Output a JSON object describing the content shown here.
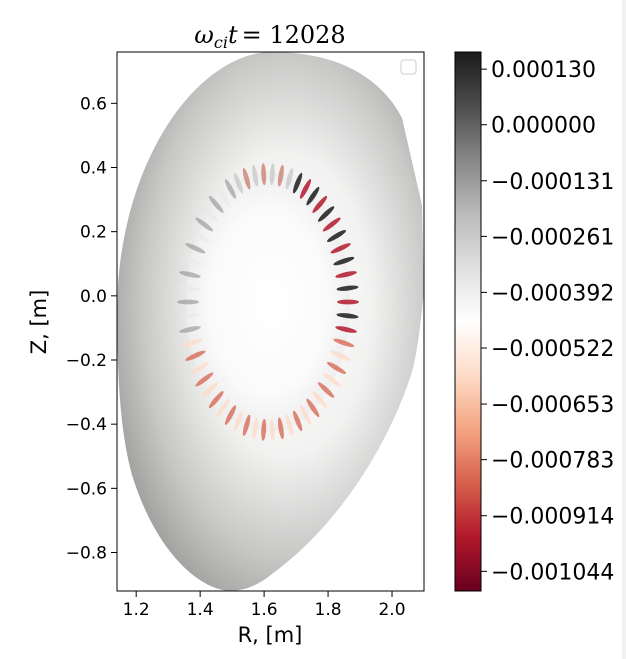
{
  "chart_data": {
    "type": "heatmap",
    "title": "ω_ci t = 12028",
    "title_parts": {
      "omega": "ω",
      "sub": "ci",
      "t": "t",
      "value": "= 12028"
    },
    "xlabel": "R, [m]",
    "ylabel": "Z, [m]",
    "xlim": [
      1.14,
      2.1
    ],
    "ylim": [
      -0.92,
      0.76
    ],
    "x_ticks": [
      1.2,
      1.4,
      1.6,
      1.8,
      2.0
    ],
    "x_tick_labels": [
      "1.2",
      "1.4",
      "1.6",
      "1.8",
      "2.0"
    ],
    "y_ticks": [
      0.6,
      0.4,
      0.2,
      0.0,
      -0.2,
      -0.4,
      -0.6,
      -0.8
    ],
    "y_tick_labels": [
      "0.6",
      "0.4",
      "0.2",
      "0.0",
      "−0.2",
      "−0.4",
      "−0.6",
      "−0.8"
    ],
    "colorbar": {
      "range": [
        -0.00109,
        0.00017
      ],
      "ticks": [
        0.00013,
        0.0,
        -0.000131,
        -0.000261,
        -0.000392,
        -0.000522,
        -0.000653,
        -0.000783,
        -0.000914,
        -0.001044
      ],
      "tick_labels": [
        "0.000130",
        "0.000000",
        "−0.000131",
        "−0.000261",
        "−0.000392",
        "−0.000522",
        "−0.000653",
        "−0.000783",
        "−0.000914",
        "−0.001044"
      ],
      "colormap": "RdGy",
      "stops": [
        "#67001f",
        "#b2182b",
        "#d6604d",
        "#f4a582",
        "#fddbc7",
        "#ffffff",
        "#e0e0e0",
        "#bababa",
        "#878787",
        "#4d4d4d",
        "#1a1a1a"
      ]
    },
    "legend": {
      "placement": "upper-right",
      "entries": []
    },
    "grid": false
  }
}
